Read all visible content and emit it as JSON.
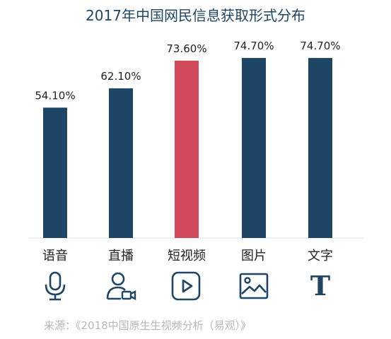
{
  "chart_data": {
    "type": "bar",
    "title": "2017年中国网民信息获取形式分布",
    "categories": [
      "语音",
      "直播",
      "短视频",
      "图片",
      "文字"
    ],
    "values": [
      54.1,
      62.1,
      73.6,
      74.7,
      74.7
    ],
    "value_labels": [
      "54.10%",
      "62.10%",
      "73.60%",
      "74.70%",
      "74.70%"
    ],
    "ylim": [
      0,
      80
    ],
    "grid": false,
    "highlight_index": 2,
    "colors": {
      "bar": "#1f4565",
      "highlight": "#d1495b"
    }
  },
  "icons": [
    "microphone-icon",
    "live-stream-user-icon",
    "play-video-icon",
    "image-icon",
    "text-icon"
  ],
  "text_icon_glyph": "T",
  "source": "来源：《2018中国原生生视频分析（易观）》"
}
